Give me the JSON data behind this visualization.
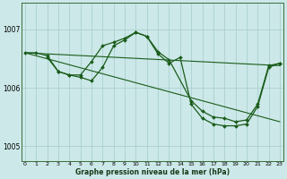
{
  "xlabel": "Graphe pression niveau de la mer (hPa)",
  "bg_color": "#cce8e8",
  "grid_color": "#aacfcf",
  "line_color": "#1a5c1a",
  "marker_color": "#1a5c1a",
  "ylim": [
    1004.75,
    1007.45
  ],
  "yticks": [
    1005,
    1006,
    1007
  ],
  "xlim": [
    -0.3,
    23.3
  ],
  "xticks": [
    0,
    1,
    2,
    3,
    4,
    5,
    6,
    7,
    8,
    9,
    10,
    11,
    12,
    13,
    14,
    15,
    16,
    17,
    18,
    19,
    20,
    21,
    22,
    23
  ],
  "series_line1_x": [
    0,
    23
  ],
  "series_line1_y": [
    1006.6,
    1006.38
  ],
  "series_line2_x": [
    0,
    23
  ],
  "series_line2_y": [
    1006.6,
    1005.42
  ],
  "series_main_x": [
    0,
    1,
    2,
    3,
    4,
    5,
    6,
    7,
    8,
    9,
    10,
    11,
    12,
    13,
    15,
    16,
    17,
    18,
    19,
    20,
    21,
    22,
    23
  ],
  "series_main_y": [
    1006.6,
    1006.6,
    1006.55,
    1006.28,
    1006.22,
    1006.22,
    1006.45,
    1006.72,
    1006.78,
    1006.85,
    1006.95,
    1006.88,
    1006.62,
    1006.48,
    1005.78,
    1005.6,
    1005.5,
    1005.48,
    1005.42,
    1005.45,
    1005.72,
    1006.38,
    1006.42
  ],
  "series_alt_x": [
    2,
    3,
    4,
    5,
    6,
    7,
    8,
    9,
    10,
    11,
    12,
    13,
    14,
    15,
    16,
    17,
    18,
    19,
    20,
    21,
    22,
    23
  ],
  "series_alt_y": [
    1006.52,
    1006.28,
    1006.22,
    1006.18,
    1006.12,
    1006.35,
    1006.72,
    1006.82,
    1006.95,
    1006.88,
    1006.58,
    1006.42,
    1006.52,
    1005.72,
    1005.48,
    1005.38,
    1005.35,
    1005.35,
    1005.38,
    1005.68,
    1006.35,
    1006.42
  ]
}
